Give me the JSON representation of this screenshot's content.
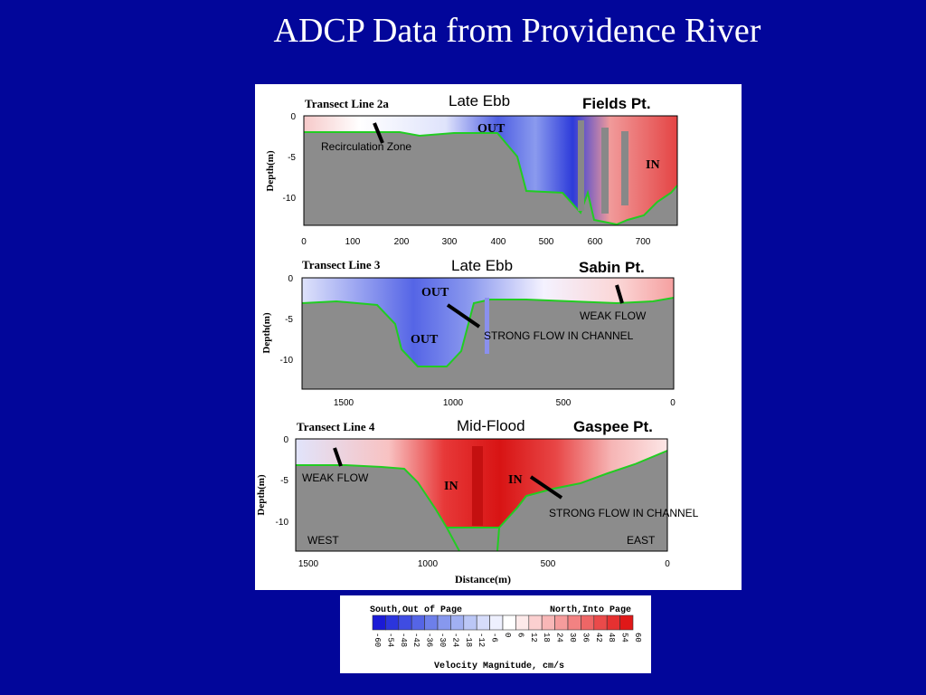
{
  "slide": {
    "title": "ADCP Data from Providence River"
  },
  "colors": {
    "background": "#02069a",
    "land": "#8c8c8c",
    "bottom_line": "#22cc22",
    "south_out": "#1a2bd6",
    "north_in": "#e01818"
  },
  "chart_data": [
    {
      "type": "heatmap",
      "title": "Transect Line 2a",
      "subtitle": "Late Ebb",
      "location": "Fields Pt.",
      "xlabel": "",
      "ylabel": "Depth(m)",
      "xlim": [
        0,
        770
      ],
      "ylim": [
        -13,
        0
      ],
      "x_ticks": [
        "0",
        "100",
        "200",
        "300",
        "400",
        "500",
        "600",
        "700"
      ],
      "y_ticks": [
        "0",
        "-5",
        "-10"
      ],
      "annotations": [
        "OUT",
        "IN",
        "Recirculation Zone"
      ],
      "flow": [
        {
          "label": "OUT",
          "x_start": 420,
          "x_end": 560,
          "velocity_cm_s": -40
        },
        {
          "label": "IN",
          "x_start": 640,
          "x_end": 760,
          "velocity_cm_s": 35
        }
      ]
    },
    {
      "type": "heatmap",
      "title": "Transect Line 3",
      "subtitle": "Late Ebb",
      "location": "Sabin Pt.",
      "xlabel": "",
      "ylabel": "Depth(m)",
      "xlim": [
        1700,
        0
      ],
      "ylim": [
        -13,
        0
      ],
      "x_ticks": [
        "1500",
        "1000",
        "500",
        "0"
      ],
      "y_ticks": [
        "0",
        "-5",
        "-10"
      ],
      "annotations": [
        "OUT",
        "OUT",
        "WEAK FLOW",
        "STRONG FLOW IN CHANNEL"
      ],
      "flow": [
        {
          "label": "OUT",
          "x_start": 1000,
          "x_end": 1250,
          "velocity_cm_s": -40
        },
        {
          "label": "WEAK FLOW",
          "x_start": 0,
          "x_end": 500,
          "velocity_cm_s": 10
        }
      ]
    },
    {
      "type": "heatmap",
      "title": "Transect Line 4",
      "subtitle": "Mid-Flood",
      "location": "Gaspee Pt.",
      "xlabel": "Distance(m)",
      "ylabel": "Depth(m)",
      "xlim": [
        1600,
        0
      ],
      "ylim": [
        -13,
        0
      ],
      "x_ticks": [
        "1500",
        "1000",
        "500",
        "0"
      ],
      "y_ticks": [
        "0",
        "-5",
        "-10"
      ],
      "annotations": [
        "WEAK FLOW",
        "IN",
        "IN",
        "STRONG FLOW IN CHANNEL",
        "WEST",
        "EAST"
      ],
      "flow": [
        {
          "label": "IN",
          "x_start": 600,
          "x_end": 1000,
          "velocity_cm_s": 50
        },
        {
          "label": "WEAK FLOW",
          "x_start": 1300,
          "x_end": 1600,
          "velocity_cm_s": 5
        }
      ]
    }
  ],
  "colorbar": {
    "left_label": "South,Out of Page",
    "right_label": "North,Into Page",
    "title": "Velocity Magnitude, cm/s",
    "values": [
      "-60",
      "-54",
      "-48",
      "-42",
      "-36",
      "-30",
      "-24",
      "-18",
      "-12",
      "-6",
      "0",
      "6",
      "12",
      "18",
      "24",
      "30",
      "36",
      "42",
      "48",
      "54",
      "60"
    ],
    "colors": [
      "#1a1ad6",
      "#2b35dd",
      "#3f4ce2",
      "#5565e6",
      "#6d7fea",
      "#8798ee",
      "#a1b0f2",
      "#bbc7f6",
      "#d6dcfa",
      "#eef0fe",
      "#ffffff",
      "#fdeaea",
      "#fbd0d0",
      "#f8b7b7",
      "#f59c9c",
      "#f28282",
      "#ee6666",
      "#ea4a4a",
      "#e63131",
      "#e01818"
    ]
  }
}
